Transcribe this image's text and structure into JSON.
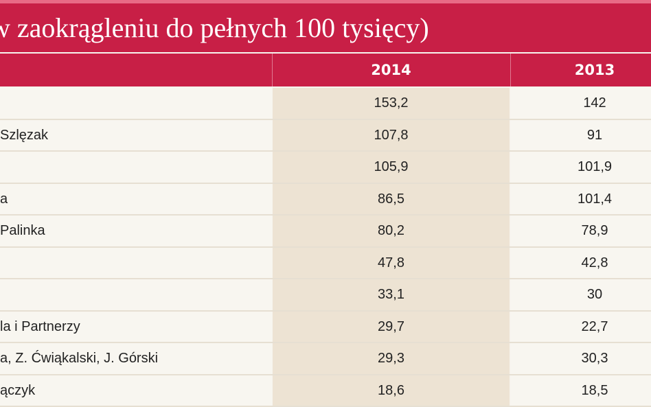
{
  "title": "w zaokrągleniu do pełnych 100 tysięcy)",
  "header": {
    "col_name": "",
    "col_2014": "2014",
    "col_2013": "2013"
  },
  "colors": {
    "accent": "#c81f46",
    "highlight_column": "#ede3d3"
  },
  "rows": [
    {
      "name": "",
      "v2014": "153,2",
      "v2013": "142"
    },
    {
      "name": "Szlęzak",
      "v2014": "107,8",
      "v2013": "91"
    },
    {
      "name": "",
      "v2014": "105,9",
      "v2013": "101,9"
    },
    {
      "name": "a",
      "v2014": "86,5",
      "v2013": "101,4"
    },
    {
      "name": "Palinka",
      "v2014": "80,2",
      "v2013": "78,9"
    },
    {
      "name": "",
      "v2014": "47,8",
      "v2013": "42,8"
    },
    {
      "name": "",
      "v2014": "33,1",
      "v2013": "30"
    },
    {
      "name": "la i Partnerzy",
      "v2014": "29,7",
      "v2013": "22,7"
    },
    {
      "name": "a, Z. Ćwiąkalski, J. Górski",
      "v2014": "29,3",
      "v2013": "30,3"
    },
    {
      "name": "ączyk",
      "v2014": "18,6",
      "v2013": "18,5"
    }
  ]
}
